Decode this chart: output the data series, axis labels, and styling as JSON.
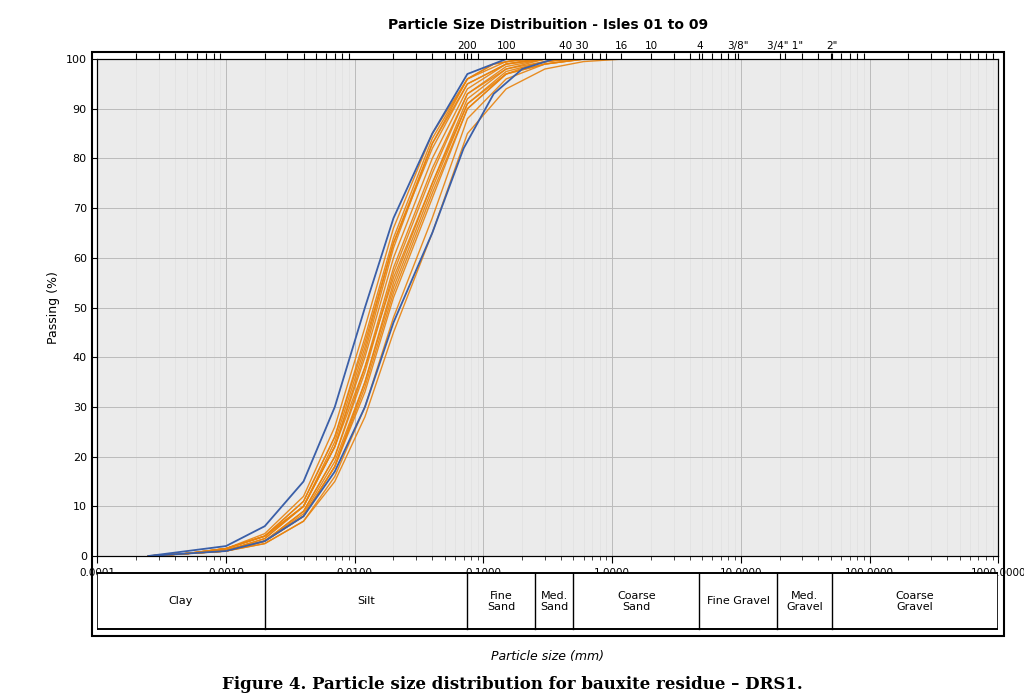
{
  "title": "Particle Size Distribuition - Isles 01 to 09",
  "ylabel": "Passing (%)",
  "xlabel": "Particle size (mm)",
  "figure_caption": "Figure 4. Particle size distribution for bauxite residue – DRS1.",
  "xmin": 0.0001,
  "xmax": 1000.0,
  "ymin": 0,
  "ymax": 100,
  "yticks": [
    0,
    10,
    20,
    30,
    40,
    50,
    60,
    70,
    80,
    90,
    100
  ],
  "sieve_labels": [
    "200",
    "100",
    "40 30",
    "16",
    "10",
    "4",
    "3/8\"",
    "3/4\" 1\"",
    "2\""
  ],
  "sieve_sizes_mm": [
    0.075,
    0.15,
    0.5,
    1.18,
    2.0,
    4.75,
    9.525,
    22.0,
    50.8
  ],
  "soil_classes": [
    {
      "label": "Clay",
      "x_start": 0.0001,
      "x_end": 0.002
    },
    {
      "label": "Silt",
      "x_start": 0.002,
      "x_end": 0.075
    },
    {
      "label": "Fine\nSand",
      "x_start": 0.075,
      "x_end": 0.25
    },
    {
      "label": "Med.\nSand",
      "x_start": 0.25,
      "x_end": 0.5
    },
    {
      "label": "Coarse\nSand",
      "x_start": 0.5,
      "x_end": 4.75
    },
    {
      "label": "Fine Gravel",
      "x_start": 4.75,
      "x_end": 19.05
    },
    {
      "label": "Med.\nGravel",
      "x_start": 19.05,
      "x_end": 50.8
    },
    {
      "label": "Coarse\nGravel",
      "x_start": 50.8,
      "x_end": 1000.0
    }
  ],
  "orange_color": "#E8820C",
  "blue_color": "#3A5FA8",
  "grid_major_color": "#BBBBBB",
  "grid_minor_color": "#DDDDDD",
  "plot_bg": "#F0F0F0",
  "orange_curves": [
    [
      [
        0.00025,
        0.0005,
        0.001,
        0.002,
        0.004,
        0.007,
        0.012,
        0.02,
        0.04,
        0.075,
        0.15,
        0.3,
        0.6
      ],
      [
        0,
        0.5,
        1,
        3,
        8,
        18,
        35,
        55,
        75,
        92,
        98,
        100,
        100
      ]
    ],
    [
      [
        0.00025,
        0.0005,
        0.001,
        0.002,
        0.004,
        0.007,
        0.012,
        0.02,
        0.04,
        0.075,
        0.15,
        0.3,
        0.6
      ],
      [
        0,
        0.5,
        1.5,
        4,
        10,
        22,
        40,
        60,
        80,
        94,
        99,
        100,
        100
      ]
    ],
    [
      [
        0.00025,
        0.0005,
        0.001,
        0.002,
        0.004,
        0.007,
        0.012,
        0.02,
        0.04,
        0.075,
        0.15,
        0.3,
        0.5
      ],
      [
        0,
        0.5,
        1,
        3,
        9,
        20,
        38,
        58,
        78,
        93,
        98.5,
        100,
        100
      ]
    ],
    [
      [
        0.00025,
        0.0005,
        0.001,
        0.002,
        0.004,
        0.007,
        0.012,
        0.02,
        0.04,
        0.075,
        0.15,
        0.25,
        0.5
      ],
      [
        0,
        0.5,
        1.5,
        4,
        11,
        24,
        43,
        63,
        82,
        95,
        99,
        100,
        100
      ]
    ],
    [
      [
        0.00025,
        0.0005,
        0.001,
        0.002,
        0.004,
        0.007,
        0.012,
        0.02,
        0.04,
        0.075,
        0.12,
        0.2,
        0.4
      ],
      [
        0,
        0.5,
        1.2,
        3.5,
        10,
        22,
        41,
        62,
        83,
        96,
        99,
        100,
        100
      ]
    ],
    [
      [
        0.00025,
        0.0005,
        0.001,
        0.002,
        0.004,
        0.007,
        0.012,
        0.02,
        0.04,
        0.075,
        0.15,
        0.3,
        0.6,
        1.2
      ],
      [
        0,
        0.5,
        1,
        3,
        8,
        18,
        33,
        52,
        72,
        90,
        97,
        99,
        100,
        100
      ]
    ],
    [
      [
        0.00025,
        0.0005,
        0.001,
        0.002,
        0.004,
        0.007,
        0.012,
        0.02,
        0.04,
        0.075,
        0.15,
        0.3,
        0.6,
        1.2
      ],
      [
        0,
        0.5,
        1.5,
        4,
        10,
        22,
        38,
        56,
        75,
        91,
        97,
        99,
        100,
        100
      ]
    ],
    [
      [
        0.00025,
        0.0005,
        0.001,
        0.002,
        0.004,
        0.007,
        0.012,
        0.02,
        0.04,
        0.075,
        0.15,
        0.3,
        0.5,
        1.0
      ],
      [
        0,
        0.5,
        1.2,
        3,
        9,
        20,
        37,
        57,
        77,
        93,
        98,
        99.5,
        100,
        100
      ]
    ],
    [
      [
        0.00025,
        0.0005,
        0.001,
        0.002,
        0.004,
        0.007,
        0.012,
        0.02,
        0.04,
        0.075,
        0.15,
        0.3,
        0.5,
        0.8
      ],
      [
        0,
        0.5,
        1,
        3.5,
        10,
        23,
        42,
        63,
        83,
        95,
        99,
        100,
        100,
        100
      ]
    ],
    [
      [
        0.00025,
        0.0005,
        0.001,
        0.002,
        0.004,
        0.007,
        0.012,
        0.02,
        0.04,
        0.075,
        0.15,
        0.25,
        0.5
      ],
      [
        0,
        0.5,
        1.5,
        4.5,
        12,
        26,
        46,
        66,
        85,
        96,
        99.5,
        100,
        100
      ]
    ],
    [
      [
        0.00025,
        0.0005,
        0.001,
        0.002,
        0.004,
        0.007,
        0.012,
        0.02,
        0.04,
        0.075,
        0.15,
        0.3,
        0.6,
        1.0
      ],
      [
        0,
        0.5,
        1,
        2.5,
        7,
        16,
        30,
        48,
        68,
        88,
        96,
        99,
        100,
        100
      ]
    ],
    [
      [
        0.00025,
        0.0005,
        0.001,
        0.002,
        0.004,
        0.007,
        0.012,
        0.02,
        0.04,
        0.075,
        0.15,
        0.3,
        0.6,
        1.2,
        2.0
      ],
      [
        0,
        0.5,
        1,
        2.5,
        7,
        15,
        28,
        45,
        65,
        85,
        94,
        98,
        99.5,
        100,
        100
      ]
    ],
    [
      [
        0.00025,
        0.0005,
        0.001,
        0.002,
        0.004,
        0.007,
        0.012,
        0.02,
        0.04,
        0.075,
        0.15,
        0.3,
        0.5,
        0.8,
        1.5
      ],
      [
        0,
        0.5,
        1.2,
        3,
        8.5,
        19,
        35,
        54,
        74,
        91,
        97.5,
        99.5,
        100,
        100,
        100
      ]
    ],
    [
      [
        0.00025,
        0.0005,
        0.001,
        0.002,
        0.004,
        0.007,
        0.012,
        0.02,
        0.04,
        0.075,
        0.12,
        0.2,
        0.35,
        0.6,
        1.0
      ],
      [
        0,
        0.5,
        1.5,
        4,
        11,
        24,
        44,
        64,
        84,
        96,
        99,
        100,
        100,
        100,
        100
      ]
    ],
    [
      [
        0.00025,
        0.0005,
        0.001,
        0.002,
        0.004,
        0.007,
        0.012,
        0.02,
        0.04,
        0.075,
        0.15,
        0.25,
        0.4,
        0.7,
        1.2
      ],
      [
        0,
        0.5,
        1,
        3,
        8,
        18,
        34,
        53,
        73,
        90,
        97,
        99,
        100,
        100,
        100
      ]
    ]
  ],
  "blue_curves": [
    [
      [
        0.00025,
        0.0005,
        0.001,
        0.002,
        0.004,
        0.007,
        0.012,
        0.02,
        0.04,
        0.075,
        0.15,
        0.3
      ],
      [
        0,
        1,
        2,
        6,
        15,
        30,
        50,
        68,
        85,
        97,
        100,
        100
      ]
    ],
    [
      [
        0.00025,
        0.0005,
        0.001,
        0.002,
        0.004,
        0.007,
        0.012,
        0.02,
        0.04,
        0.07,
        0.12,
        0.2,
        0.35,
        0.6
      ],
      [
        0,
        0.5,
        1,
        3,
        8,
        17,
        30,
        47,
        65,
        82,
        93,
        98,
        100,
        100
      ]
    ]
  ],
  "x_major_ticks": [
    0.0001,
    0.001,
    0.01,
    0.1,
    1.0,
    10.0,
    100.0,
    1000.0
  ],
  "x_major_labels": [
    "0.0001",
    "0.0010",
    "0.0100",
    "0.1000",
    "1.0000",
    "10.0000",
    "100.0000",
    "1000.0000"
  ]
}
